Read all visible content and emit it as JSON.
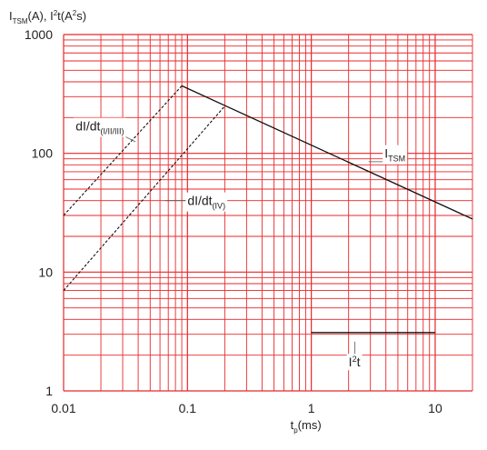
{
  "chart_data": {
    "type": "line",
    "x_scale": "log",
    "y_scale": "log",
    "xlim": [
      0.01,
      20
    ],
    "ylim": [
      1,
      1000
    ],
    "x_ticks": [
      0.01,
      0.1,
      1,
      10
    ],
    "x_tick_labels": [
      "0.01",
      "0.1",
      "1",
      "10"
    ],
    "y_ticks": [
      1,
      10,
      100,
      1000
    ],
    "y_tick_labels": [
      "1",
      "10",
      "100",
      "1000"
    ],
    "grid": true,
    "grid_color": "#e8272a",
    "ylabel": {
      "parts": [
        {
          "t": "I",
          "s": "n"
        },
        {
          "t": "TSM",
          "s": "sub"
        },
        {
          "t": "(A), I",
          "s": "n"
        },
        {
          "t": "2",
          "s": "sup"
        },
        {
          "t": "t(A",
          "s": "n"
        },
        {
          "t": "2",
          "s": "sup"
        },
        {
          "t": "s)",
          "s": "n"
        }
      ]
    },
    "xlabel": {
      "parts": [
        {
          "t": "t",
          "s": "n"
        },
        {
          "t": "p",
          "s": "sub"
        },
        {
          "t": "(ms)",
          "s": "n"
        }
      ]
    },
    "series": [
      {
        "x": [
          0.09,
          20
        ],
        "y": [
          370,
          28
        ],
        "style": "solid"
      },
      {
        "x": [
          0.01,
          0.09
        ],
        "y": [
          30,
          370
        ],
        "style": "dashed"
      },
      {
        "x": [
          0.01,
          0.2
        ],
        "y": [
          7,
          250
        ],
        "style": "dashed"
      },
      {
        "x": [
          1,
          10
        ],
        "y": [
          3.1,
          3.1
        ],
        "style": "solid"
      }
    ],
    "annotations": [
      {
        "id": "didt-123",
        "parts": [
          {
            "t": "dI/dt",
            "s": "n"
          },
          {
            "t": "(I/II/III)",
            "s": "sub"
          }
        ],
        "at": [
          0.0125,
          170
        ],
        "leader_to": [
          0.038,
          125
        ]
      },
      {
        "id": "didt-4",
        "parts": [
          {
            "t": "dI/dt",
            "s": "n"
          },
          {
            "t": "(IV)",
            "s": "sub"
          }
        ],
        "at": [
          0.1,
          40
        ],
        "leader_to": [
          0.066,
          40
        ]
      },
      {
        "id": "itsm",
        "parts": [
          {
            "t": "I",
            "s": "n"
          },
          {
            "t": "TSM",
            "s": "sub"
          }
        ],
        "at": [
          3.9,
          100
        ],
        "leader_to": [
          2.9,
          85
        ]
      },
      {
        "id": "i2t",
        "parts": [
          {
            "t": "I",
            "s": "n"
          },
          {
            "t": "2",
            "s": "sup"
          },
          {
            "t": "t",
            "s": "n"
          }
        ],
        "at": [
          2.0,
          1.75
        ],
        "leader_to": [
          2.25,
          2.6
        ]
      }
    ]
  }
}
